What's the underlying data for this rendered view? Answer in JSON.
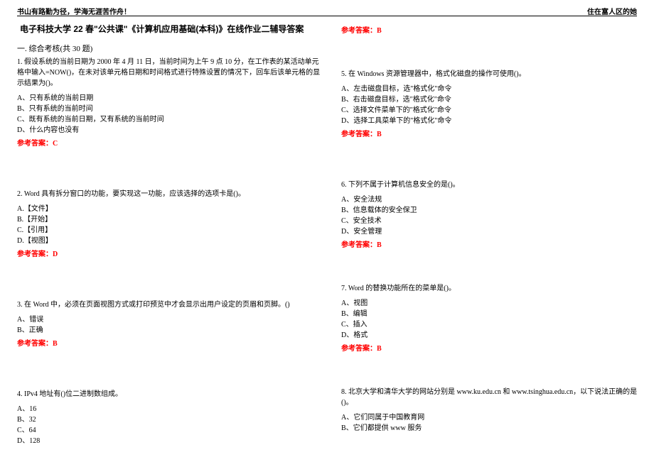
{
  "header": {
    "left": "书山有路勤为径，学海无涯苦作舟！",
    "right": "住在富人区的她"
  },
  "title": "电子科技大学 22 春\"公共课\"《计算机应用基础(本科)》在线作业二辅导答案",
  "section": "一. 综合考核(共 30 题)",
  "answer_label": "参考答案：",
  "left_questions": [
    {
      "stem": "1. 假设系统的当前日期为 2000 年 4 月 11 日，当前时间为上午 9 点 10 分，在工作表的某活动单元格中输入=NOW()，在未对该单元格日期和时间格式进行特殊设置的情况下，回车后该单元格的显示结果为()。",
      "opts": [
        "A、只有系统的当前日期",
        "B、只有系统的当前时间",
        "C、既有系统的当前日期，又有系统的当前时间",
        "D、什么内容也没有"
      ],
      "ans": "C",
      "spacer": "lg"
    },
    {
      "stem": "2. Word 具有拆分窗口的功能，要实现这一功能，应该选择的选项卡是()。",
      "opts": [
        "A.【文件】",
        "B.【开始】",
        "C.【引用】",
        "D.【视图】"
      ],
      "ans": "D",
      "spacer": "lg"
    },
    {
      "stem": "3. 在 Word 中，必须在页面视图方式或打印预览中才会显示出用户设定的页眉和页脚。()",
      "opts": [
        "A、错误",
        "B、正确"
      ],
      "ans": "B",
      "spacer": "lg"
    },
    {
      "stem": "4. IPv4 地址有()位二进制数组成。",
      "opts": [
        "A、16",
        "B、32",
        "C、64",
        "D、128"
      ],
      "ans": null,
      "spacer": null
    }
  ],
  "right_questions": [
    {
      "stem": null,
      "opts": [],
      "ans": "B",
      "spacer": "md"
    },
    {
      "stem": "5. 在 Windows 资源管理器中，格式化磁盘的操作可使用()。",
      "opts": [
        "A、左击磁盘目标，选\"格式化\"命令",
        "B、右击磁盘目标，选\"格式化\"命令",
        "C、选择文件菜单下的\"格式化\"命令",
        "D、选择工具菜单下的\"格式化\"命令"
      ],
      "ans": "B",
      "spacer": "lg"
    },
    {
      "stem": "6. 下列不属于计算机信息安全的是()。",
      "opts": [
        "A、安全法规",
        "B、信息载体的安全保卫",
        "C、安全技术",
        "D、安全管理"
      ],
      "ans": "B",
      "spacer": "md"
    },
    {
      "stem": "7. Word 的替换功能所在的菜单是()。",
      "opts": [
        "A、视图",
        "B、编辑",
        "C、插入",
        "D、格式"
      ],
      "ans": "B",
      "spacer": "md"
    },
    {
      "stem": "8. 北京大学和清华大学的网站分别是 www.ku.edu.cn 和 www.tsinghua.edu.cn，以下说法正确的是()。",
      "opts": [
        "A、它们同属于中国教育网",
        "B、它们都提供 www 服务"
      ],
      "ans": null,
      "spacer": null
    }
  ]
}
